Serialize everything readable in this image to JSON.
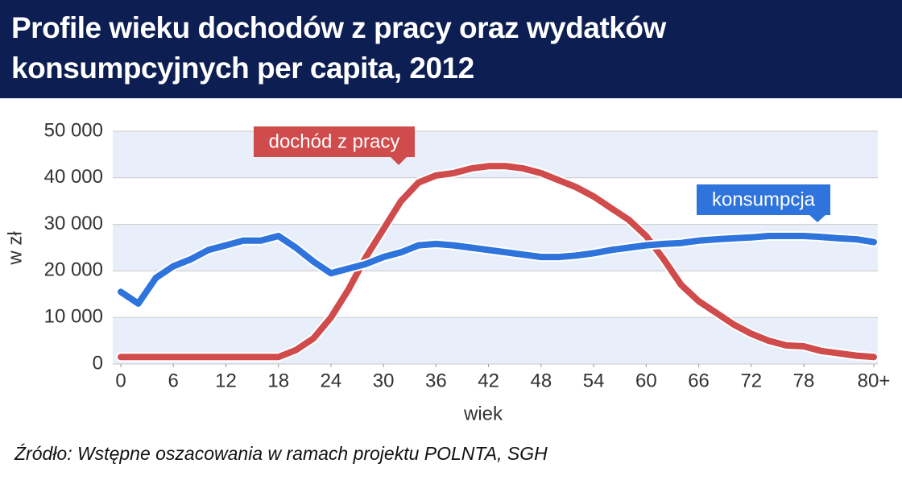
{
  "chart_data": {
    "type": "line",
    "title": "Profile wieku dochodów z pracy oraz wydatków konsumpcyjnych per capita, 2012",
    "x_label": "wiek",
    "y_label": "w zł",
    "source": "Źródło: Wstępne oszacowania w ramach projektu POLNTA, SGH",
    "x": [
      0,
      2,
      4,
      6,
      8,
      10,
      12,
      14,
      16,
      18,
      20,
      22,
      24,
      26,
      28,
      30,
      32,
      34,
      36,
      38,
      40,
      42,
      44,
      46,
      48,
      50,
      52,
      54,
      56,
      58,
      60,
      62,
      64,
      66,
      68,
      70,
      72,
      74,
      76,
      78,
      80,
      82,
      84,
      86
    ],
    "series": [
      {
        "name": "dochód z pracy",
        "color": "#d04b4b",
        "values": [
          1500,
          1500,
          1500,
          1500,
          1500,
          1500,
          1500,
          1500,
          1500,
          1500,
          3000,
          5500,
          10000,
          16000,
          23000,
          29000,
          35000,
          39000,
          40500,
          41000,
          42000,
          42500,
          42500,
          42000,
          41000,
          39500,
          38000,
          36000,
          33500,
          31000,
          27500,
          22500,
          17000,
          13500,
          11000,
          8500,
          6500,
          5000,
          4000,
          3800,
          2800,
          2300,
          1800,
          1500
        ]
      },
      {
        "name": "konsumpcja",
        "color": "#2e74dc",
        "values": [
          15500,
          13000,
          18500,
          21000,
          22500,
          24500,
          25500,
          26500,
          26500,
          27500,
          25000,
          22000,
          19500,
          20500,
          21500,
          23000,
          24000,
          25500,
          25800,
          25500,
          25000,
          24500,
          24000,
          23500,
          23000,
          23000,
          23300,
          23800,
          24500,
          25000,
          25500,
          25800,
          26000,
          26500,
          26800,
          27000,
          27200,
          27500,
          27500,
          27500,
          27300,
          27000,
          26800,
          26200
        ]
      }
    ],
    "xlim": [
      0,
      86
    ],
    "xticks": [
      0,
      6,
      12,
      18,
      24,
      30,
      36,
      42,
      48,
      54,
      60,
      66,
      72,
      78,
      {
        "value": 86,
        "label": "80+"
      }
    ],
    "ylim": [
      0,
      50000
    ],
    "yticks": [
      {
        "value": 0,
        "label": "0"
      },
      {
        "value": 10000,
        "label": "10 000"
      },
      {
        "value": 20000,
        "label": "20 000"
      },
      {
        "value": 30000,
        "label": "30 000"
      },
      {
        "value": 40000,
        "label": "40 000"
      },
      {
        "value": 50000,
        "label": "50 000"
      }
    ],
    "grid": true
  }
}
